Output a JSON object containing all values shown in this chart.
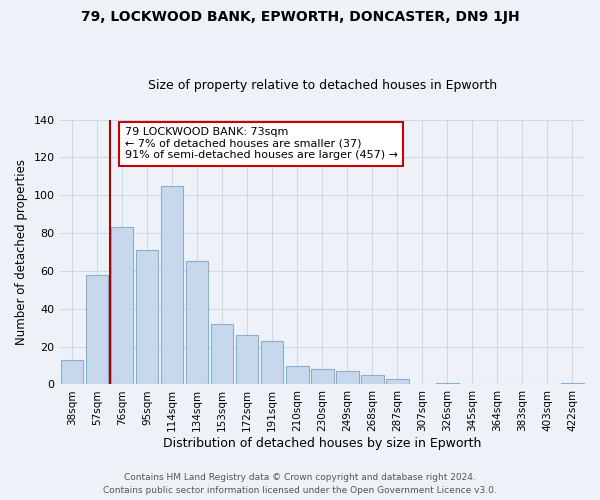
{
  "title": "79, LOCKWOOD BANK, EPWORTH, DONCASTER, DN9 1JH",
  "subtitle": "Size of property relative to detached houses in Epworth",
  "xlabel": "Distribution of detached houses by size in Epworth",
  "ylabel": "Number of detached properties",
  "bar_labels": [
    "38sqm",
    "57sqm",
    "76sqm",
    "95sqm",
    "114sqm",
    "134sqm",
    "153sqm",
    "172sqm",
    "191sqm",
    "210sqm",
    "230sqm",
    "249sqm",
    "268sqm",
    "287sqm",
    "307sqm",
    "326sqm",
    "345sqm",
    "364sqm",
    "383sqm",
    "403sqm",
    "422sqm"
  ],
  "bar_values": [
    13,
    58,
    83,
    71,
    105,
    65,
    32,
    26,
    23,
    10,
    8,
    7,
    5,
    3,
    0,
    1,
    0,
    0,
    0,
    0,
    1
  ],
  "bar_color": "#c8d8ec",
  "bar_edge_color": "#8aaece",
  "vline_x_index": 2,
  "vline_color": "#aa0000",
  "ylim": [
    0,
    140
  ],
  "yticks": [
    0,
    20,
    40,
    60,
    80,
    100,
    120,
    140
  ],
  "annotation_title": "79 LOCKWOOD BANK: 73sqm",
  "annotation_line1": "← 7% of detached houses are smaller (37)",
  "annotation_line2": "91% of semi-detached houses are larger (457) →",
  "annotation_box_color": "#ffffff",
  "annotation_box_edge": "#cc0000",
  "footer_line1": "Contains HM Land Registry data © Crown copyright and database right 2024.",
  "footer_line2": "Contains public sector information licensed under the Open Government Licence v3.0.",
  "background_color": "#eef2f8",
  "grid_color": "#d0d8e8",
  "title_fontsize": 10,
  "subtitle_fontsize": 9
}
